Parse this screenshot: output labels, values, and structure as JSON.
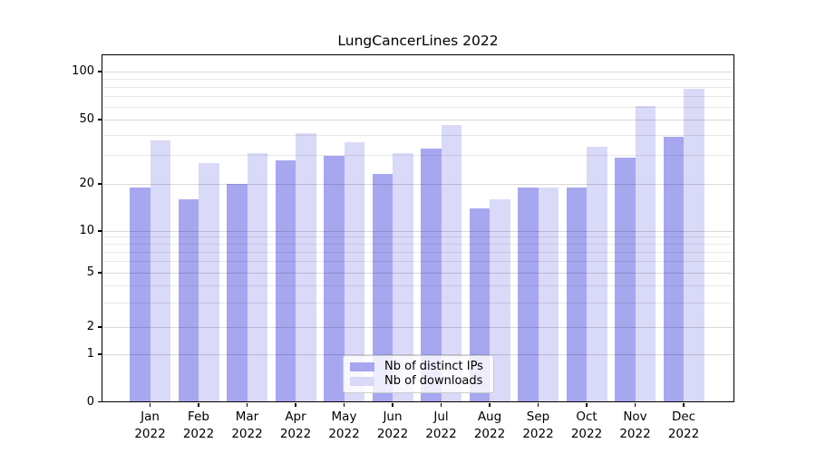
{
  "title": "LungCancerLines 2022",
  "chart_data": {
    "type": "bar",
    "title": "LungCancerLines 2022",
    "categories": [
      "Jan",
      "Feb",
      "Mar",
      "Apr",
      "May",
      "Jun",
      "Jul",
      "Aug",
      "Sep",
      "Oct",
      "Nov",
      "Dec"
    ],
    "year_label": "2022",
    "series": [
      {
        "name": "Nb of distinct IPs",
        "color": "#a7a7f0",
        "values": [
          19,
          16,
          20,
          28,
          30,
          23,
          33,
          14,
          19,
          19,
          29,
          39
        ]
      },
      {
        "name": "Nb of downloads",
        "color": "#d9d9f8",
        "values": [
          37,
          27,
          31,
          41,
          36,
          31,
          46,
          16,
          19,
          34,
          61,
          78
        ]
      }
    ],
    "xlabel": "",
    "ylabel": "",
    "yscale": "log-like, linear below 1",
    "ytick_labels": [
      "0",
      "1",
      "2",
      "5",
      "10",
      "20",
      "50",
      "100"
    ],
    "ytick_values": [
      0,
      1,
      2,
      5,
      10,
      20,
      50,
      100
    ],
    "minor_gridline_values": [
      3,
      4,
      6,
      7,
      8,
      9,
      30,
      40,
      60,
      70,
      80,
      90
    ],
    "ylim": [
      0,
      130
    ],
    "grid": true,
    "legend_position": "inside bottom-center",
    "colors": {
      "major_grid": "rgba(0,0,0,0.15)",
      "minor_grid": "rgba(0,0,0,0.09)",
      "axis": "#000000",
      "background": "#ffffff"
    }
  }
}
